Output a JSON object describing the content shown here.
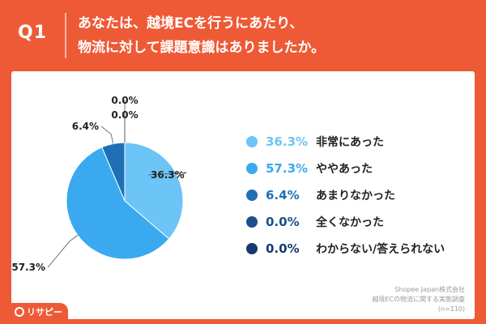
{
  "header": {
    "q_label": "Q1",
    "question_line1": "あなたは、越境ECを行うにあたり、",
    "question_line2": "物流に対して課題意識はありましたか。"
  },
  "chart_data": {
    "type": "pie",
    "categories": [
      "非常にあった",
      "ややあった",
      "あまりなかった",
      "全くなかった",
      "わからない/答えられない"
    ],
    "values": [
      36.3,
      57.3,
      6.4,
      0.0,
      0.0
    ],
    "value_labels": [
      "36.3%",
      "57.3%",
      "6.4%",
      "0.0%",
      "0.0%"
    ],
    "colors": [
      "#6cc4f7",
      "#3aa9f0",
      "#1f6fb5",
      "#1b4f8c",
      "#143a70"
    ],
    "start": "12 o'clock, clockwise",
    "legend_position": "right"
  },
  "source": {
    "line1": "Shopee Japan株式会社",
    "line2": "越境ECの物流に関する実態調査",
    "line3": "(n=110)"
  },
  "logo": {
    "text": "リサピー"
  }
}
